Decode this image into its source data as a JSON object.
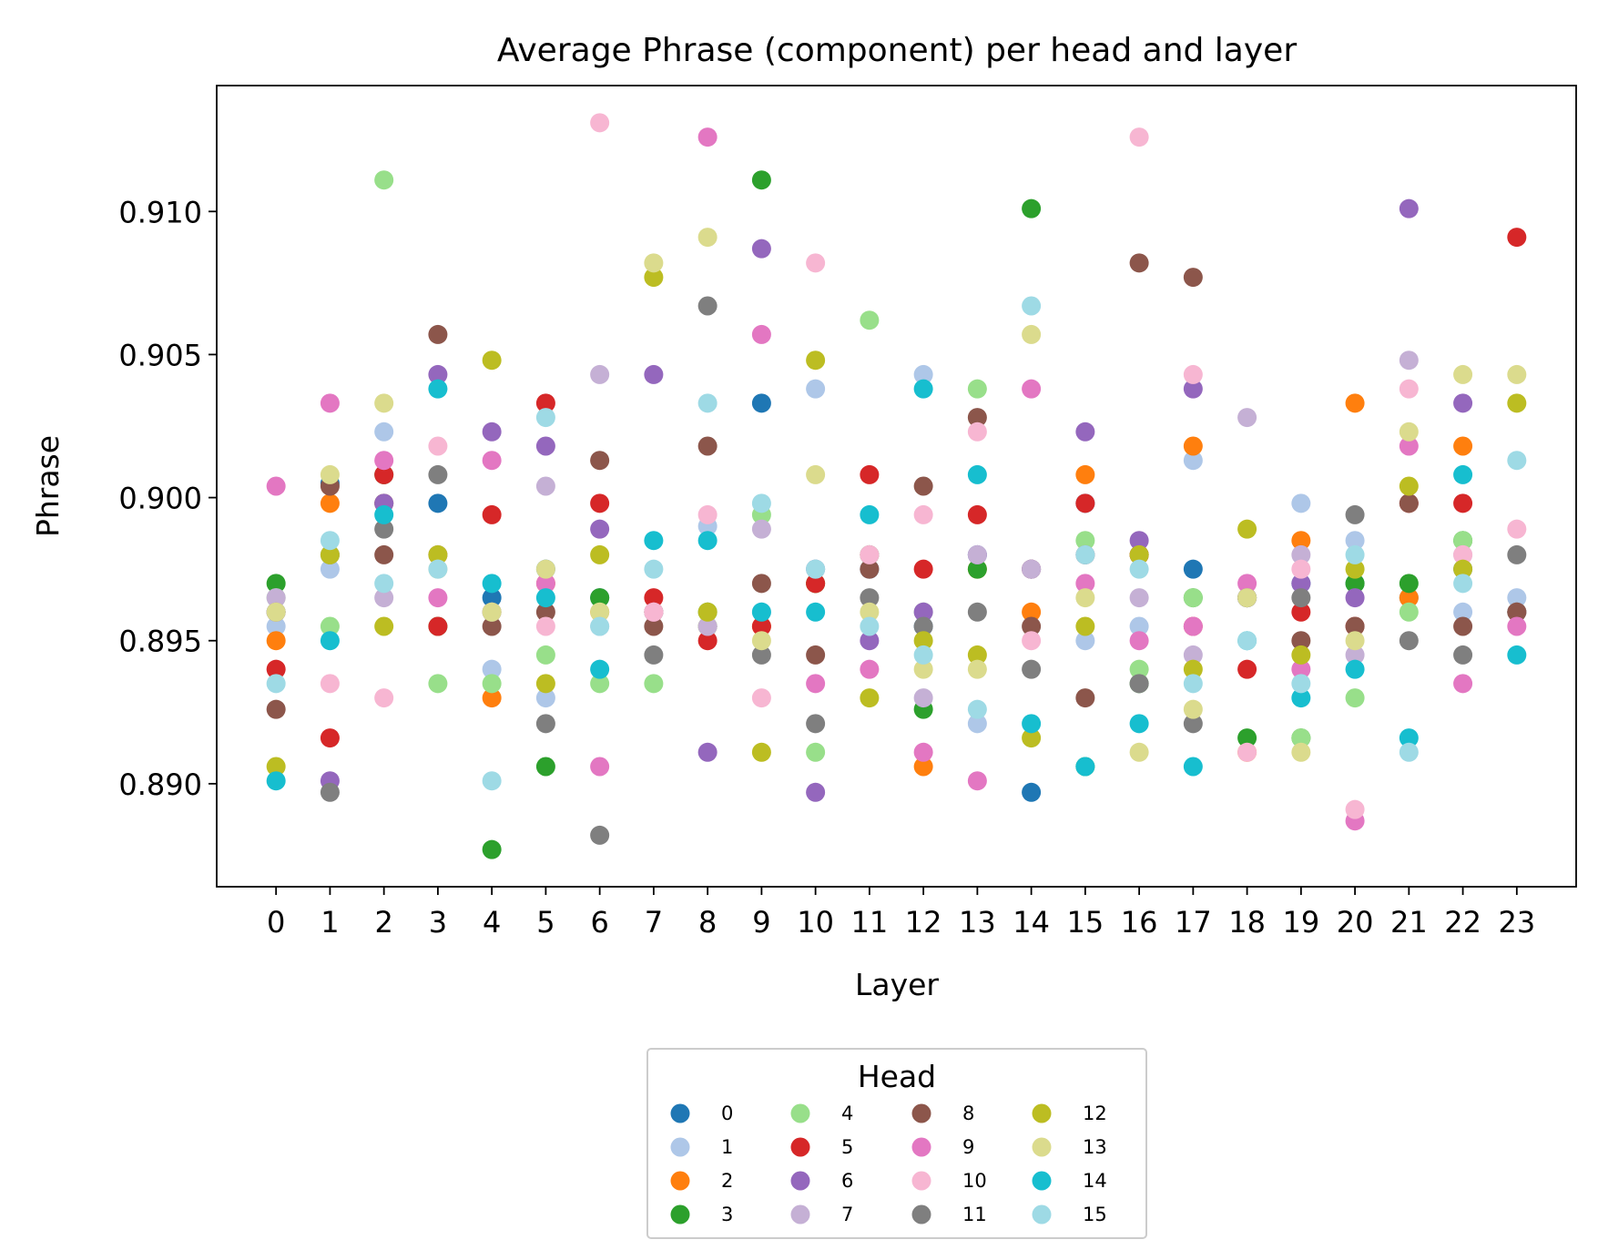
{
  "chart_data": {
    "type": "scatter",
    "title": "Average Phrase (component) per head and layer",
    "xlabel": "Layer",
    "ylabel": "Phrase",
    "x": [
      0,
      1,
      2,
      3,
      4,
      5,
      6,
      7,
      8,
      9,
      10,
      11,
      12,
      13,
      14,
      15,
      16,
      17,
      18,
      19,
      20,
      21,
      22,
      23
    ],
    "xticks": [
      "0",
      "1",
      "2",
      "3",
      "4",
      "5",
      "6",
      "7",
      "8",
      "9",
      "10",
      "11",
      "12",
      "13",
      "14",
      "15",
      "16",
      "17",
      "18",
      "19",
      "20",
      "21",
      "22",
      "23"
    ],
    "xlim": [
      -1.1,
      24.1
    ],
    "ylim": [
      0.8864,
      0.9144
    ],
    "yticks": [
      "0.890",
      "0.895",
      "0.900",
      "0.905",
      "0.910"
    ],
    "grid": false,
    "legend": {
      "title": "Head",
      "placement": "bottom-center",
      "columns": 4
    },
    "series": [
      {
        "name": "0",
        "color": "#1f77b4",
        "values": [
          0.896,
          0.9005,
          0.8998,
          0.8998,
          0.8965,
          0.8975,
          0.8965,
          0.896,
          0.8955,
          0.9033,
          0.8975,
          0.8975,
          0.8955,
          0.898,
          0.8897,
          0.8998,
          0.898,
          0.8975,
          0.8965,
          0.897,
          0.897,
          0.8965,
          0.8975,
          0.896
        ]
      },
      {
        "name": "1",
        "color": "#aec7e8",
        "values": [
          0.8955,
          0.8975,
          0.9023,
          0.898,
          0.894,
          0.893,
          0.8955,
          0.896,
          0.899,
          0.896,
          0.9038,
          0.8975,
          0.9043,
          0.8921,
          0.8975,
          0.895,
          0.8955,
          0.9013,
          0.8965,
          0.8998,
          0.8985,
          0.8965,
          0.896,
          0.8965
        ]
      },
      {
        "name": "2",
        "color": "#ff7f0e",
        "values": [
          0.895,
          0.8998,
          0.8998,
          0.898,
          0.893,
          0.897,
          0.896,
          0.896,
          0.8955,
          0.8955,
          0.897,
          0.898,
          0.8906,
          0.8975,
          0.896,
          0.9008,
          0.898,
          0.9018,
          0.8911,
          0.8985,
          0.9033,
          0.8965,
          0.9018,
          0.896
        ]
      },
      {
        "name": "3",
        "color": "#2ca02c",
        "values": [
          0.897,
          0.898,
          0.9008,
          0.8955,
          0.8877,
          0.8906,
          0.8965,
          0.896,
          0.896,
          0.9111,
          0.897,
          0.898,
          0.8926,
          0.8975,
          0.9101,
          0.8906,
          0.8935,
          0.8965,
          0.8916,
          0.8916,
          0.897,
          0.897,
          0.8985,
          0.896
        ]
      },
      {
        "name": "4",
        "color": "#98df8a",
        "values": [
          0.8965,
          0.8955,
          0.9111,
          0.8935,
          0.8935,
          0.8945,
          0.8935,
          0.8935,
          0.8955,
          0.8994,
          0.8911,
          0.9062,
          0.896,
          0.9038,
          0.8975,
          0.8985,
          0.894,
          0.8965,
          0.8965,
          0.8916,
          0.893,
          0.896,
          0.8985,
          0.896
        ]
      },
      {
        "name": "5",
        "color": "#d62728",
        "values": [
          0.894,
          0.8916,
          0.9008,
          0.8955,
          0.8994,
          0.9033,
          0.8998,
          0.8965,
          0.895,
          0.8955,
          0.897,
          0.9008,
          0.8975,
          0.8994,
          0.8975,
          0.8998,
          0.898,
          0.8955,
          0.894,
          0.896,
          0.8955,
          0.8998,
          0.8998,
          0.9091
        ]
      },
      {
        "name": "6",
        "color": "#9467bd",
        "values": [
          0.896,
          0.8901,
          0.8998,
          0.9043,
          0.9023,
          0.9018,
          0.8989,
          0.9043,
          0.8911,
          0.9087,
          0.8897,
          0.895,
          0.896,
          0.898,
          0.8975,
          0.9023,
          0.8985,
          0.9038,
          0.8965,
          0.897,
          0.8965,
          0.9101,
          0.9033,
          0.896
        ]
      },
      {
        "name": "7",
        "color": "#c5b0d5",
        "values": [
          0.8965,
          0.898,
          0.8965,
          0.898,
          0.896,
          0.9004,
          0.9043,
          0.896,
          0.8955,
          0.8989,
          0.8975,
          0.898,
          0.893,
          0.898,
          0.8975,
          0.898,
          0.8965,
          0.8945,
          0.9028,
          0.898,
          0.8945,
          0.9048,
          0.898,
          0.896
        ]
      },
      {
        "name": "8",
        "color": "#8c564b",
        "values": [
          0.8926,
          0.9004,
          0.898,
          0.9057,
          0.8955,
          0.896,
          0.9013,
          0.8955,
          0.9018,
          0.897,
          0.8945,
          0.8975,
          0.9004,
          0.9028,
          0.8955,
          0.893,
          0.9082,
          0.9077,
          0.8965,
          0.895,
          0.8955,
          0.8998,
          0.8955,
          0.896
        ]
      },
      {
        "name": "9",
        "color": "#e377c2",
        "values": [
          0.9004,
          0.9033,
          0.9013,
          0.8965,
          0.9013,
          0.897,
          0.8906,
          0.896,
          0.9126,
          0.9057,
          0.8935,
          0.894,
          0.8911,
          0.8901,
          0.9038,
          0.897,
          0.895,
          0.8955,
          0.897,
          0.894,
          0.8887,
          0.9018,
          0.8935,
          0.8955
        ]
      },
      {
        "name": "10",
        "color": "#f7b6d2",
        "values": [
          0.896,
          0.8935,
          0.893,
          0.9018,
          0.896,
          0.8955,
          0.9131,
          0.896,
          0.8994,
          0.893,
          0.9082,
          0.898,
          0.8994,
          0.9023,
          0.895,
          0.898,
          0.9126,
          0.9043,
          0.8911,
          0.8975,
          0.8891,
          0.9038,
          0.898,
          0.8989
        ]
      },
      {
        "name": "11",
        "color": "#7f7f7f",
        "values": [
          0.896,
          0.8897,
          0.8989,
          0.9008,
          0.896,
          0.8921,
          0.8882,
          0.8945,
          0.9067,
          0.8945,
          0.8921,
          0.8965,
          0.8955,
          0.896,
          0.894,
          0.898,
          0.8935,
          0.8921,
          0.8965,
          0.8965,
          0.8994,
          0.895,
          0.8945,
          0.898
        ]
      },
      {
        "name": "12",
        "color": "#bcbd22",
        "values": [
          0.8906,
          0.898,
          0.8955,
          0.898,
          0.9048,
          0.8935,
          0.898,
          0.9077,
          0.896,
          0.8911,
          0.9048,
          0.893,
          0.895,
          0.8945,
          0.8916,
          0.8955,
          0.898,
          0.894,
          0.8989,
          0.8945,
          0.8975,
          0.9004,
          0.8975,
          0.9033
        ]
      },
      {
        "name": "13",
        "color": "#dbdb8d",
        "values": [
          0.896,
          0.9008,
          0.9033,
          0.8975,
          0.896,
          0.8975,
          0.896,
          0.9082,
          0.9091,
          0.895,
          0.9008,
          0.896,
          0.894,
          0.894,
          0.9057,
          0.8965,
          0.8911,
          0.8926,
          0.8965,
          0.8911,
          0.895,
          0.9023,
          0.9043,
          0.9043
        ]
      },
      {
        "name": "14",
        "color": "#17becf",
        "values": [
          0.8901,
          0.895,
          0.8994,
          0.9038,
          0.897,
          0.8965,
          0.894,
          0.8985,
          0.8985,
          0.896,
          0.896,
          0.8994,
          0.9038,
          0.9008,
          0.8921,
          0.8906,
          0.8921,
          0.8906,
          0.895,
          0.893,
          0.894,
          0.8916,
          0.9008,
          0.8945
        ]
      },
      {
        "name": "15",
        "color": "#9edae5",
        "values": [
          0.8935,
          0.8985,
          0.897,
          0.8975,
          0.8901,
          0.9028,
          0.8955,
          0.8975,
          0.9033,
          0.8998,
          0.8975,
          0.8955,
          0.8945,
          0.8926,
          0.9067,
          0.898,
          0.8975,
          0.8935,
          0.895,
          0.8935,
          0.898,
          0.8911,
          0.897,
          0.9013
        ]
      }
    ]
  }
}
